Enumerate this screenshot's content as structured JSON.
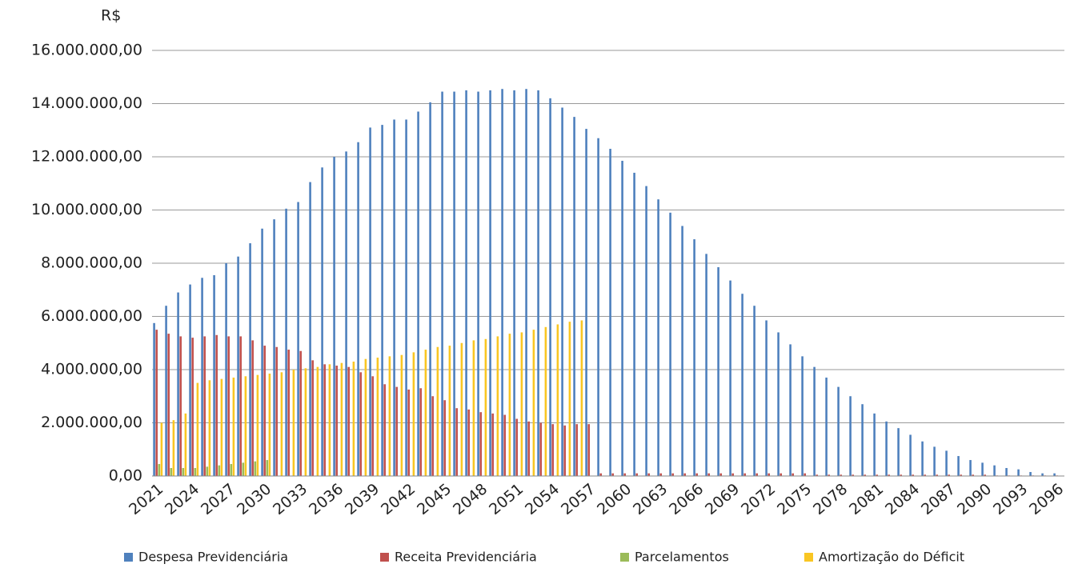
{
  "chart_data": {
    "type": "bar",
    "y_label": "R$",
    "categories": [
      "2021",
      null,
      null,
      "2024",
      null,
      null,
      "2027",
      null,
      null,
      "2030",
      null,
      null,
      "2033",
      null,
      null,
      "2036",
      null,
      null,
      "2039",
      null,
      null,
      "2042",
      null,
      null,
      "2045",
      null,
      null,
      "2048",
      null,
      null,
      "2051",
      null,
      null,
      "2054",
      null,
      null,
      "2057",
      null,
      null,
      "2060",
      null,
      null,
      "2063",
      null,
      null,
      "2066",
      null,
      null,
      "2069",
      null,
      null,
      "2072",
      null,
      null,
      "2075",
      null,
      null,
      "2078",
      null,
      null,
      "2081",
      null,
      null,
      "2084",
      null,
      null,
      "2087",
      null,
      null,
      "2090",
      null,
      null,
      "2093",
      null,
      null,
      "2096"
    ],
    "series": [
      {
        "name": "Despesa Previdenciária",
        "color": "#4f81bd",
        "values": [
          5750000,
          6400000,
          6900000,
          7200000,
          7450000,
          7550000,
          8000000,
          8250000,
          8750000,
          9300000,
          9650000,
          10050000,
          10300000,
          11050000,
          11600000,
          12000000,
          12200000,
          12550000,
          13100000,
          13200000,
          13400000,
          13400000,
          13700000,
          14050000,
          14450000,
          14450000,
          14500000,
          14450000,
          14500000,
          14550000,
          14500000,
          14550000,
          14500000,
          14200000,
          13850000,
          13500000,
          13050000,
          12700000,
          12300000,
          11850000,
          11400000,
          10900000,
          10400000,
          9900000,
          9400000,
          8900000,
          8350000,
          7850000,
          7350000,
          6850000,
          6400000,
          5850000,
          5400000,
          4950000,
          4500000,
          4100000,
          3700000,
          3350000,
          3000000,
          2700000,
          2350000,
          2050000,
          1800000,
          1550000,
          1300000,
          1100000,
          950000,
          750000,
          600000,
          500000,
          400000,
          300000,
          250000,
          150000,
          100000,
          100000
        ]
      },
      {
        "name": "Receita Previdenciária",
        "color": "#c0504d",
        "values": [
          5500000,
          5350000,
          5250000,
          5200000,
          5250000,
          5300000,
          5250000,
          5250000,
          5100000,
          4900000,
          4850000,
          4750000,
          4700000,
          4350000,
          4200000,
          4150000,
          4100000,
          3900000,
          3750000,
          3450000,
          3350000,
          3250000,
          3300000,
          3000000,
          2850000,
          2550000,
          2500000,
          2400000,
          2350000,
          2300000,
          2150000,
          2050000,
          2000000,
          1950000,
          1900000,
          1950000,
          1950000,
          100000,
          100000,
          100000,
          100000,
          100000,
          100000,
          100000,
          100000,
          100000,
          100000,
          100000,
          100000,
          100000,
          100000,
          100000,
          100000,
          100000,
          100000,
          50000,
          50000,
          50000,
          50000,
          50000,
          50000,
          50000,
          50000,
          50000,
          50000,
          50000,
          50000,
          50000,
          50000,
          50000,
          20000,
          20000,
          20000,
          20000,
          20000,
          20000
        ]
      },
      {
        "name": "Parcelamentos",
        "color": "#9bbb59",
        "values": [
          450000,
          300000,
          300000,
          300000,
          350000,
          400000,
          450000,
          500000,
          550000,
          600000,
          0,
          0,
          0,
          0,
          0,
          0,
          0,
          0,
          0,
          0,
          0,
          0,
          0,
          0,
          0,
          0,
          0,
          0,
          0,
          0,
          0,
          0,
          0,
          0,
          0,
          0,
          0,
          0,
          0,
          0,
          0,
          0,
          0,
          0,
          0,
          0,
          0,
          0,
          0,
          0,
          0,
          0,
          0,
          0,
          0,
          0,
          0,
          0,
          0,
          0,
          0,
          0,
          0,
          0,
          0,
          0,
          0,
          0,
          0,
          0,
          0,
          0,
          0,
          0,
          0,
          0
        ]
      },
      {
        "name": "Amortização do Déficit",
        "color": "#f9c623",
        "values": [
          2000000,
          2100000,
          2350000,
          3500000,
          3600000,
          3650000,
          3700000,
          3750000,
          3800000,
          3850000,
          3900000,
          4000000,
          4050000,
          4100000,
          4200000,
          4250000,
          4300000,
          4400000,
          4450000,
          4500000,
          4550000,
          4650000,
          4750000,
          4850000,
          4900000,
          5000000,
          5100000,
          5150000,
          5250000,
          5350000,
          5400000,
          5500000,
          5600000,
          5700000,
          5800000,
          5850000,
          0,
          0,
          0,
          0,
          0,
          0,
          0,
          0,
          0,
          0,
          0,
          0,
          0,
          0,
          0,
          0,
          0,
          0,
          0,
          0,
          0,
          0,
          0,
          0,
          0,
          0,
          0,
          0,
          0,
          0,
          0,
          0,
          0,
          0,
          0,
          0,
          0,
          0,
          0,
          0
        ]
      }
    ],
    "ylim": [
      0,
      16000000
    ],
    "yticks": [
      {
        "value": 0,
        "label": "0,00"
      },
      {
        "value": 2000000,
        "label": "2.000.000,00"
      },
      {
        "value": 4000000,
        "label": "4.000.000,00"
      },
      {
        "value": 6000000,
        "label": "6.000.000,00"
      },
      {
        "value": 8000000,
        "label": "8.000.000,00"
      },
      {
        "value": 10000000,
        "label": "10.000.000,00"
      },
      {
        "value": 12000000,
        "label": "12.000.000,00"
      },
      {
        "value": 14000000,
        "label": "14.000.000,00"
      },
      {
        "value": 16000000,
        "label": "16.000.000,00"
      }
    ],
    "grid": true,
    "legend": "bottom"
  }
}
